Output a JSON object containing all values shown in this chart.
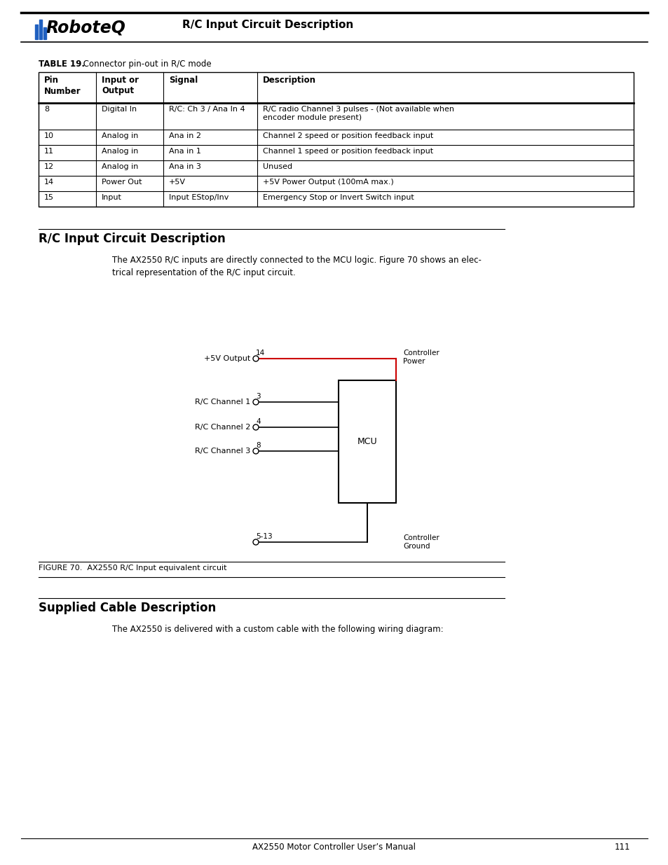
{
  "page_width": 9.54,
  "page_height": 12.35,
  "bg_color": "#ffffff",
  "header_title": "R/C Input Circuit Description",
  "table_caption_bold": "TABLE 19.",
  "table_caption_rest": " Connector pin-out in R/C mode",
  "table_cols": [
    "Pin\nNumber",
    "Input or\nOutput",
    "Signal",
    "Description"
  ],
  "table_rows": [
    [
      "8",
      "Digital In",
      "R/C: Ch 3 / Ana In 4",
      "R/C radio Channel 3 pulses - (Not available when\nencoder module present)"
    ],
    [
      "10",
      "Analog in",
      "Ana in 2",
      "Channel 2 speed or position feedback input"
    ],
    [
      "11",
      "Analog in",
      "Ana in 1",
      "Channel 1 speed or position feedback input"
    ],
    [
      "12",
      "Analog in",
      "Ana in 3",
      "Unused"
    ],
    [
      "14",
      "Power Out",
      "+5V",
      "+5V Power Output (100mA max.)"
    ],
    [
      "15",
      "Input",
      "Input EStop/Inv",
      "Emergency Stop or Invert Switch input"
    ]
  ],
  "section1_title": "R/C Input Circuit Description",
  "section1_body": "The AX2550 R/C inputs are directly connected to the MCU logic. Figure 70 shows an elec-\ntrical representation of the R/C input circuit.",
  "figure_caption": "FIGURE 70.  AX2550 R/C Input equivalent circuit",
  "section2_title": "Supplied Cable Description",
  "section2_body": "The AX2550 is delivered with a custom cable with the following wiring diagram:",
  "footer_text": "AX2550 Motor Controller User’s Manual",
  "footer_page": "111",
  "red_color": "#cc0000"
}
